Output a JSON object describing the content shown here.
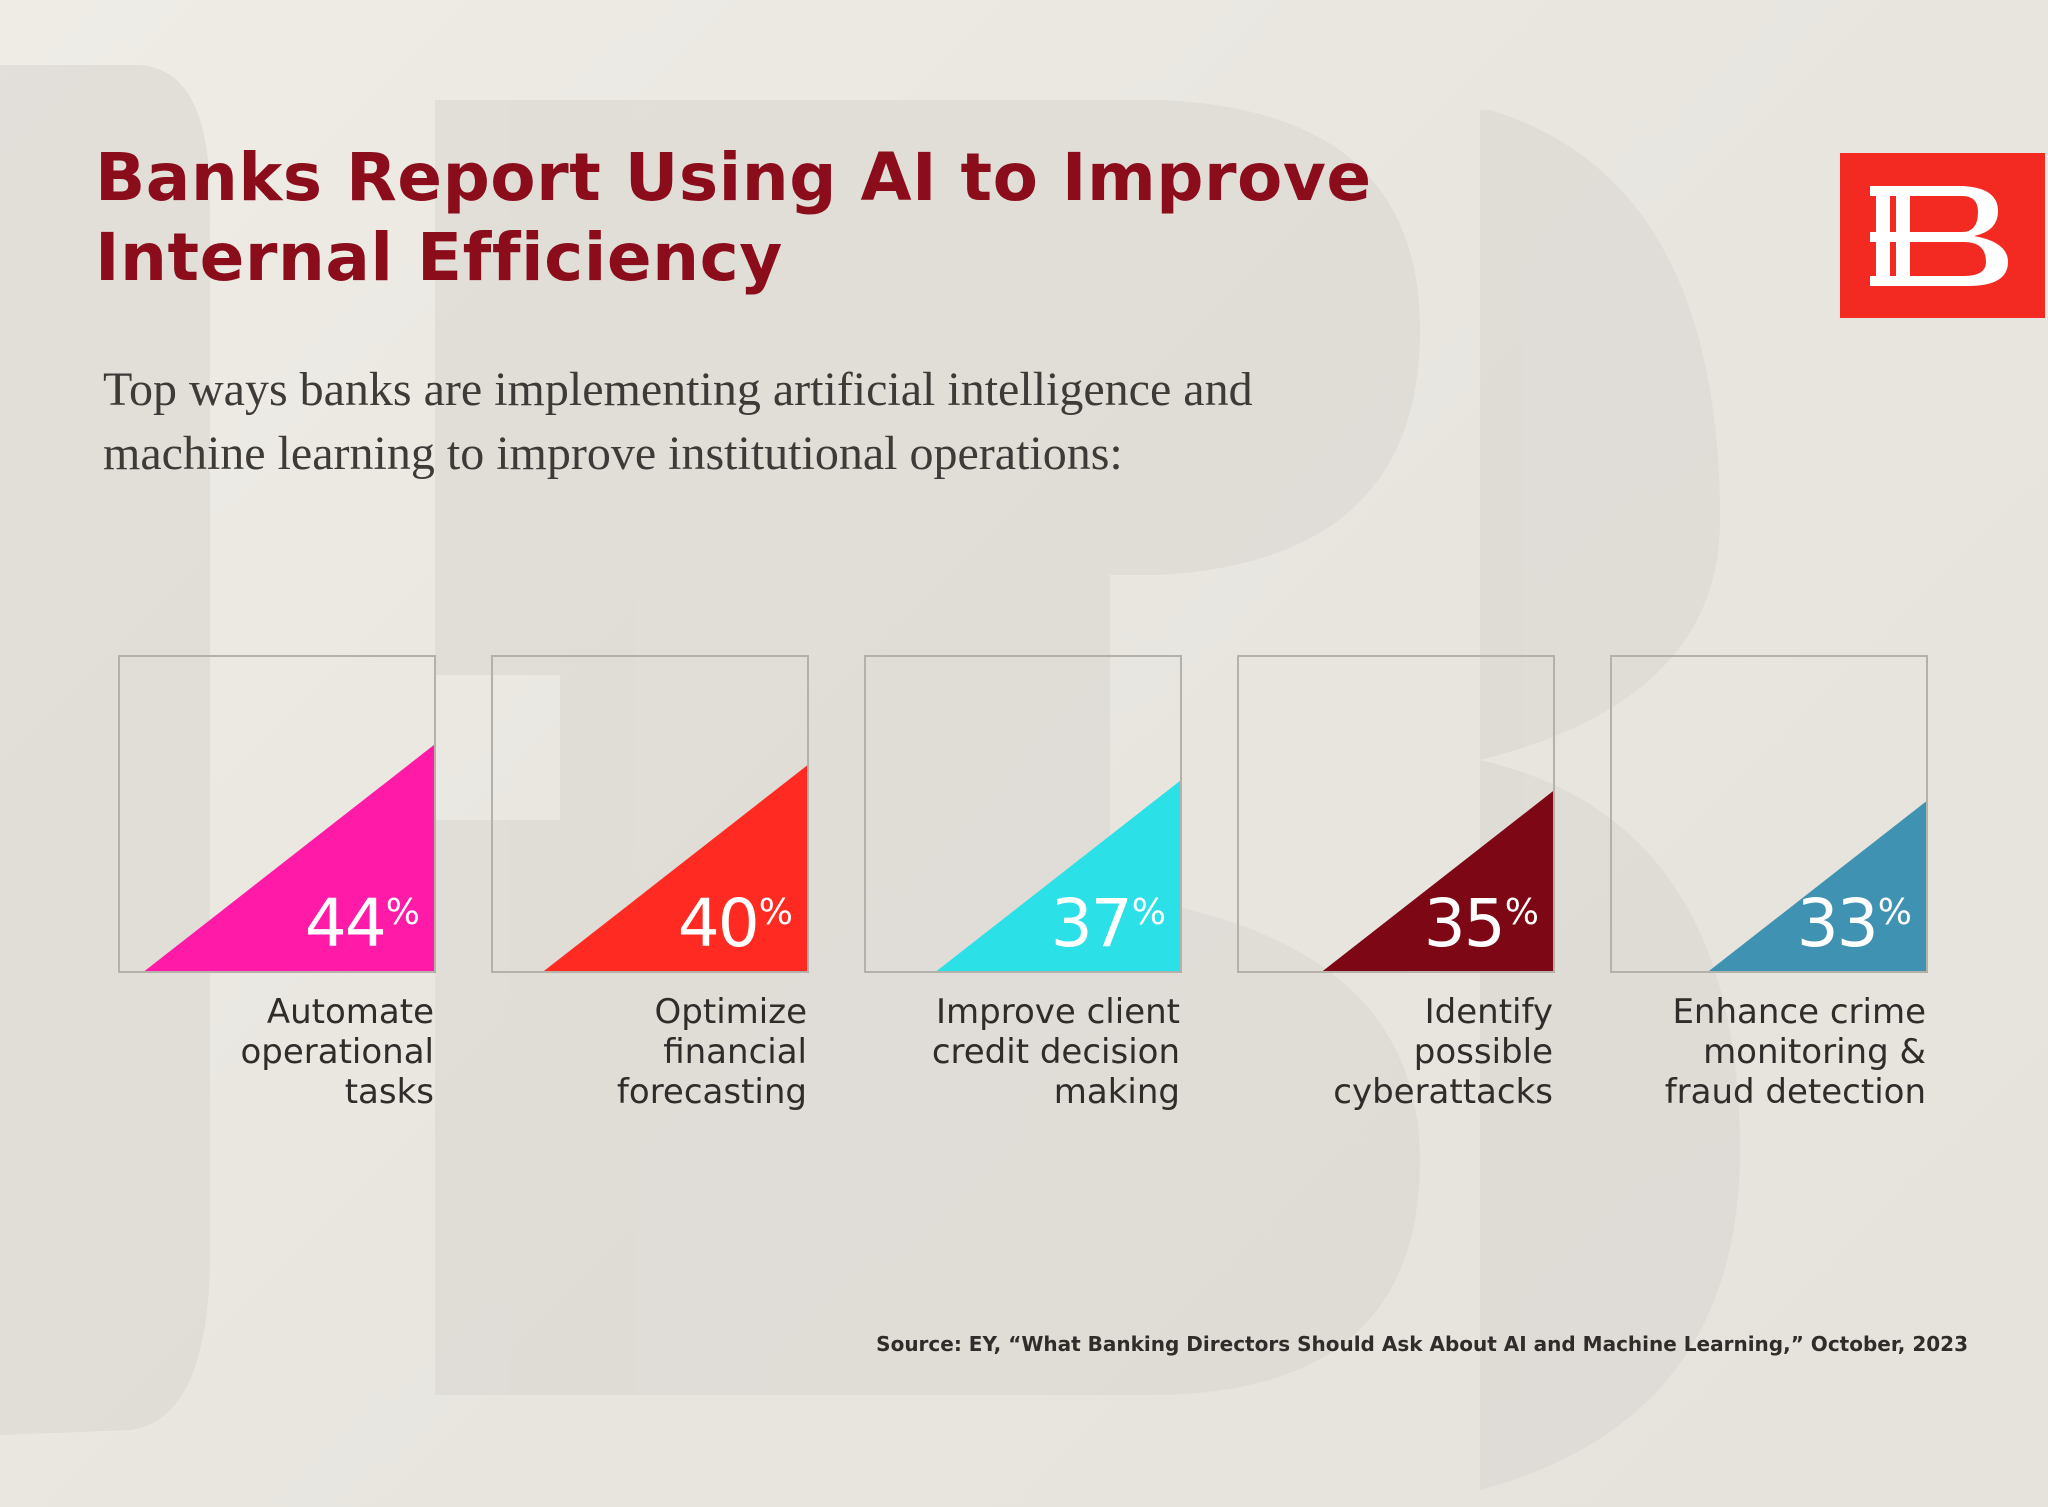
{
  "title_lines": [
    "Banks Report Using AI to Improve",
    "Internal Efficiency"
  ],
  "subtitle_lines": [
    "Top ways banks are implementing artificial intelligence and",
    "machine learning to improve institutional operations:"
  ],
  "logo": {
    "icon": "ebb-monogram-logo",
    "background": "#f22a22"
  },
  "source": "Source: EY, “What Banking Directors Should Ask About AI and Machine Learning,” October, 2023",
  "chart_data": {
    "type": "bar",
    "categories": [
      "Automate operational tasks",
      "Optimize financial forecasting",
      "Improve client credit decision making",
      "Identify possible cyberattacks",
      "Enhance crime monitoring & fraud detection"
    ],
    "values": [
      44,
      40,
      37,
      35,
      33
    ],
    "unit": "%",
    "colors": [
      "#ff1aa8",
      "#ff2a22",
      "#2ce0e8",
      "#7d0715",
      "#3f92b2"
    ]
  },
  "cards": [
    {
      "value": "44",
      "unit": "%",
      "label_lines": [
        "Automate",
        "operational",
        "tasks"
      ]
    },
    {
      "value": "40",
      "unit": "%",
      "label_lines": [
        "Optimize",
        "financial",
        "forecasting"
      ]
    },
    {
      "value": "37",
      "unit": "%",
      "label_lines": [
        "Improve client",
        "credit decision",
        "making"
      ]
    },
    {
      "value": "35",
      "unit": "%",
      "label_lines": [
        "Identify",
        "possible",
        "cyberattacks"
      ]
    },
    {
      "value": "33",
      "unit": "%",
      "label_lines": [
        "Enhance crime",
        "monitoring &",
        "fraud detection"
      ]
    }
  ]
}
